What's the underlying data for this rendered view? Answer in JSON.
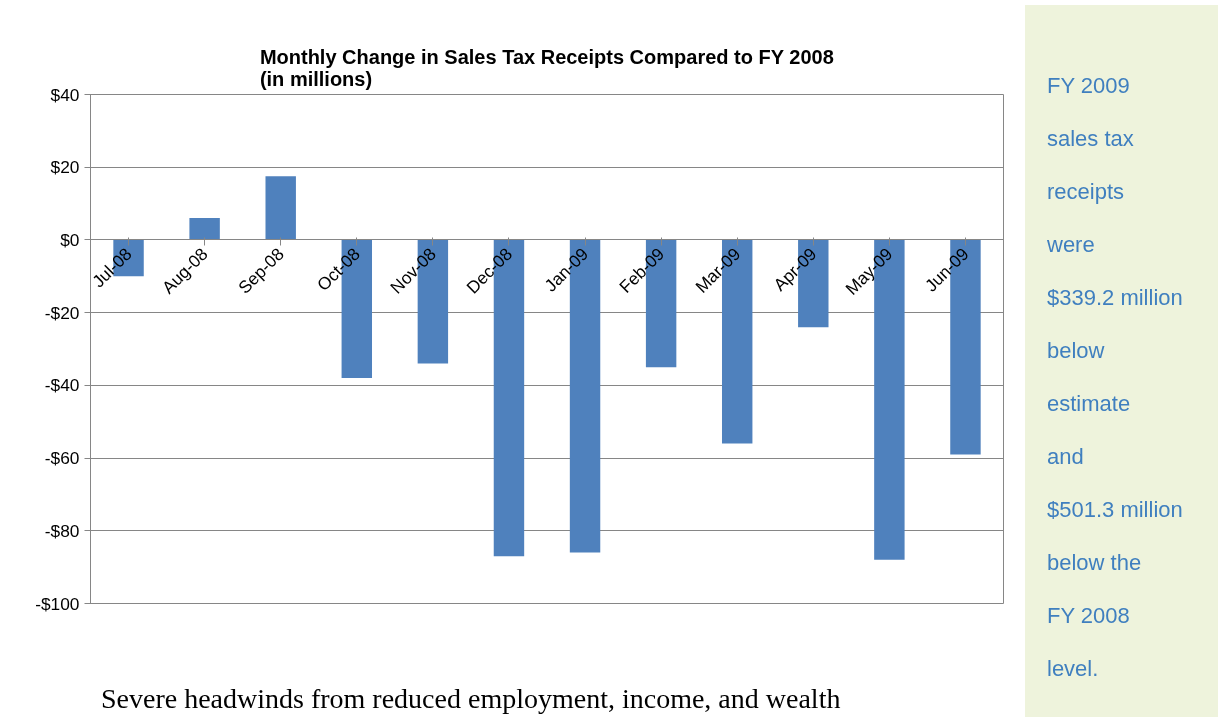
{
  "chart_data": {
    "type": "bar",
    "title": "Monthly Change in Sales Tax Receipts Compared to FY 2008\n(in millions)",
    "categories": [
      "Jul-08",
      "Aug-08",
      "Sep-08",
      "Oct-08",
      "Nov-08",
      "Dec-08",
      "Jan-09",
      "Feb-09",
      "Mar-09",
      "Apr-09",
      "May-09",
      "Jun-09"
    ],
    "values": [
      -10,
      6,
      17.5,
      -38,
      -34,
      -87,
      -86,
      -35,
      -56,
      -24,
      -88,
      -59
    ],
    "color": "#4f81bd",
    "ylim": [
      -100,
      40
    ],
    "yticks": [
      {
        "value": -100,
        "label": "-$100"
      },
      {
        "value": -80,
        "label": "-$80"
      },
      {
        "value": -60,
        "label": "-$60"
      },
      {
        "value": -40,
        "label": "-$40"
      },
      {
        "value": -20,
        "label": "-$20"
      },
      {
        "value": 0,
        "label": "$0"
      },
      {
        "value": 20,
        "label": "$20"
      },
      {
        "value": 40,
        "label": "$40"
      }
    ],
    "grid": "y",
    "annotations": [
      "FY 2009\nsales tax\nreceipts\nwere\n$339.2 million\nbelow\nestimate\nand\n$501.3 million\nbelow the\nFY 2008\nlevel.",
      "Severe headwinds from reduced employment, income, and wealth"
    ]
  }
}
